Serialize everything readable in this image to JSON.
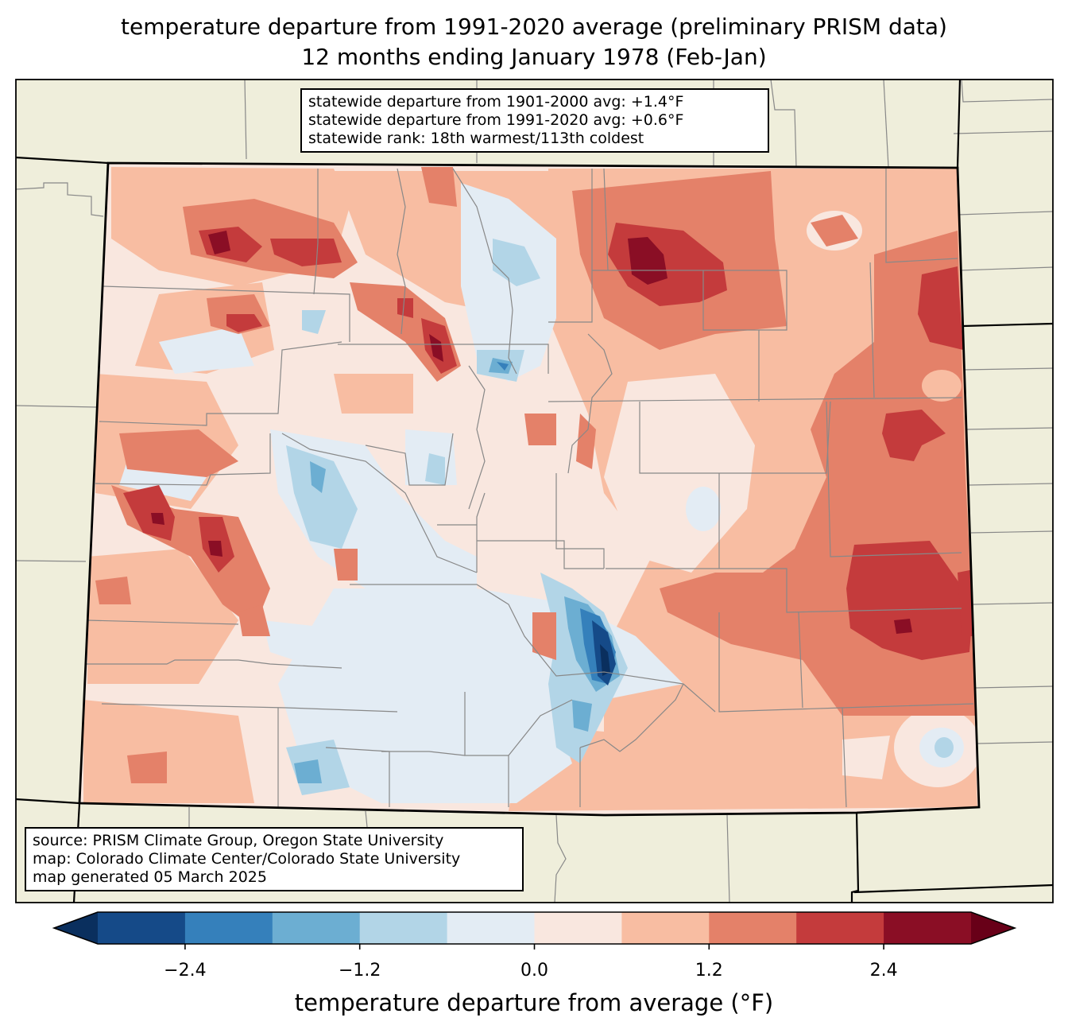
{
  "title": {
    "line1": "temperature departure from 1991-2020 average (preliminary PRISM data)",
    "line2": "12 months ending January 1978 (Feb-Jan)"
  },
  "stats_box": {
    "line1": "statewide departure from 1901-2000 avg: +1.4°F",
    "line2": "statewide departure from 1991-2020 avg: +0.6°F",
    "line3": "statewide rank: 18th warmest/113th coldest"
  },
  "credits_box": {
    "line1": "source: PRISM Climate Group, Oregon State University",
    "line2": "map: Colorado Climate Center/Colorado State University",
    "line3": "map generated 05 March 2025"
  },
  "colorbar": {
    "label": "temperature departure from average (°F)",
    "levels": [
      -3.0,
      -2.4,
      -1.8,
      -1.2,
      -0.6,
      0.0,
      0.6,
      1.2,
      1.8,
      2.4,
      3.0
    ],
    "colors": [
      "#154a88",
      "#3580bb",
      "#6caed2",
      "#b2d5e7",
      "#e3ecf4",
      "#f9e7df",
      "#f8bda2",
      "#e48169",
      "#c43b3c",
      "#8a0e25"
    ],
    "under_color": "#0a2f5e",
    "over_color": "#680018",
    "ticks": [
      {
        "value": -2.4,
        "label": "−2.4"
      },
      {
        "value": -1.2,
        "label": "−1.2"
      },
      {
        "value": 0.0,
        "label": "0.0"
      },
      {
        "value": 1.2,
        "label": "1.2"
      },
      {
        "value": 2.4,
        "label": "2.4"
      }
    ]
  },
  "map_colors": {
    "land_outside": "#efeedb",
    "county_lines": "#888888",
    "state_lines": "#000000"
  }
}
